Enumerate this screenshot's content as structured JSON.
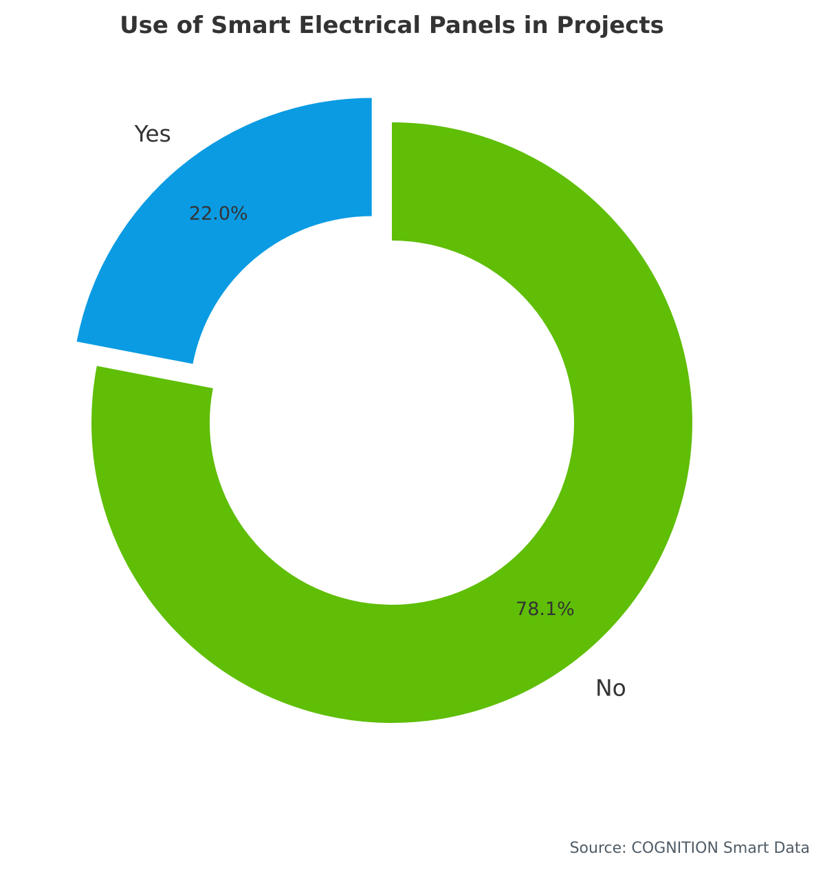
{
  "chart_data": {
    "type": "pie",
    "variant": "donut",
    "title": "Use of Smart Electrical Panels in Projects",
    "categories": [
      "Yes",
      "No"
    ],
    "values": [
      22.0,
      78.1
    ],
    "value_labels": [
      "22.0%",
      "78.1%"
    ],
    "colors": [
      "#0a9be2",
      "#5fbe05"
    ],
    "exploded": [
      true,
      false
    ],
    "start_angle_deg": 90,
    "direction": "counterclockwise",
    "source": "Source: COGNITION Smart Data"
  }
}
